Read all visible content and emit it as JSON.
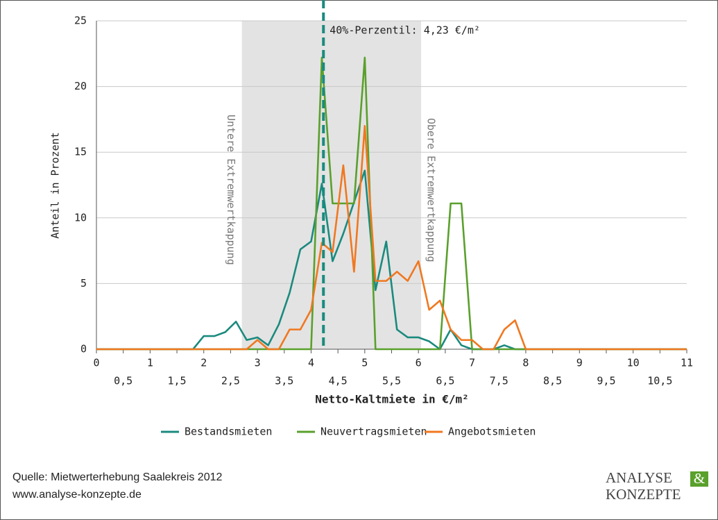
{
  "chart_data": {
    "type": "line",
    "x_label": "Netto-Kaltmiete in €/m²",
    "y_label": "Anteil in Prozent",
    "x": [
      0,
      0.2,
      0.4,
      0.6,
      0.8,
      1,
      1.2,
      1.4,
      1.6,
      1.8,
      2,
      2.2,
      2.4,
      2.6,
      2.8,
      3,
      3.2,
      3.4,
      3.6,
      3.8,
      4,
      4.2,
      4.4,
      4.6,
      4.8,
      5,
      5.2,
      5.4,
      5.6,
      5.8,
      6,
      6.2,
      6.4,
      6.6,
      6.8,
      7,
      7.2,
      7.4,
      7.6,
      7.8,
      8,
      8.2,
      8.4,
      8.6,
      8.8,
      9,
      9.2,
      9.4,
      9.6,
      9.8,
      10,
      10.2,
      10.4,
      10.6,
      10.8,
      11
    ],
    "series": [
      {
        "name": "Bestandsmieten",
        "color": "#1a8a7e",
        "values": [
          0,
          0,
          0,
          0,
          0,
          0,
          0,
          0,
          0,
          0,
          1,
          1,
          1.3,
          2.1,
          0.7,
          0.9,
          0.3,
          1.9,
          4.3,
          7.6,
          8.2,
          12.6,
          6.7,
          8.8,
          11.2,
          13.6,
          4.5,
          8.2,
          1.5,
          0.9,
          0.9,
          0.6,
          0,
          1.5,
          0.3,
          0,
          0,
          0,
          0.3,
          0,
          0,
          0,
          0,
          0,
          0,
          0,
          0,
          0,
          0,
          0,
          0,
          0,
          0,
          0,
          0,
          0
        ]
      },
      {
        "name": "Neuvertragsmieten",
        "color": "#5aa02c",
        "values": [
          0,
          0,
          0,
          0,
          0,
          0,
          0,
          0,
          0,
          0,
          0,
          0,
          0,
          0,
          0,
          0,
          0,
          0,
          0,
          0,
          0,
          22.2,
          11.1,
          11.1,
          11.1,
          22.2,
          0,
          0,
          0,
          0,
          0,
          0,
          0,
          11.1,
          11.1,
          0,
          0,
          0,
          0,
          0,
          0,
          0,
          0,
          0,
          0,
          0,
          0,
          0,
          0,
          0,
          0,
          0,
          0,
          0,
          0,
          0
        ]
      },
      {
        "name": "Angebotsmieten",
        "color": "#f07820",
        "values": [
          0,
          0,
          0,
          0,
          0,
          0,
          0,
          0,
          0,
          0,
          0,
          0,
          0,
          0,
          0,
          0.7,
          0,
          0,
          1.5,
          1.5,
          3,
          8.1,
          7.4,
          14,
          5.9,
          17,
          5.2,
          5.2,
          5.9,
          5.2,
          6.7,
          3,
          3.7,
          1.5,
          0.7,
          0.7,
          0,
          0,
          1.5,
          2.2,
          0,
          0,
          0,
          0,
          0,
          0,
          0,
          0,
          0,
          0,
          0,
          0,
          0,
          0,
          0,
          0
        ]
      }
    ],
    "xlim": [
      0,
      11
    ],
    "ylim": [
      0,
      25
    ],
    "xticks": [
      0,
      1,
      2,
      3,
      4,
      5,
      6,
      7,
      8,
      9,
      10,
      11
    ],
    "xticks_minor": [
      {
        "value": 0.5,
        "label": "0,5"
      },
      {
        "value": 1.5,
        "label": "1,5"
      },
      {
        "value": 2.5,
        "label": "2,5"
      },
      {
        "value": 3.5,
        "label": "3,5"
      },
      {
        "value": 4.5,
        "label": "4,5"
      },
      {
        "value": 5.5,
        "label": "5,5"
      },
      {
        "value": 6.5,
        "label": "6,5"
      },
      {
        "value": 7.5,
        "label": "7,5"
      },
      {
        "value": 8.5,
        "label": "8,5"
      },
      {
        "value": 9.5,
        "label": "9,5"
      },
      {
        "value": 10.5,
        "label": "10,5"
      }
    ],
    "yticks": [
      0,
      5,
      10,
      15,
      20,
      25
    ],
    "grid": true,
    "shaded_range": {
      "range": [
        2.71,
        6.05
      ],
      "lower_label": "Untere Extremwertkappung",
      "upper_label": "Obere Extremwertkappung"
    },
    "reference_line": {
      "value": 4.23,
      "label": "40%-Perzentil: 4,23 €/m²",
      "color": "#1a8a7e"
    }
  },
  "footer": {
    "source": "Quelle: Mietwerterhebung Saalekreis 2012",
    "url": "www.analyse-konzepte.de"
  },
  "logo": {
    "line1": "ANALYSE",
    "ampersand": "&",
    "line2": "KONZEPTE"
  }
}
